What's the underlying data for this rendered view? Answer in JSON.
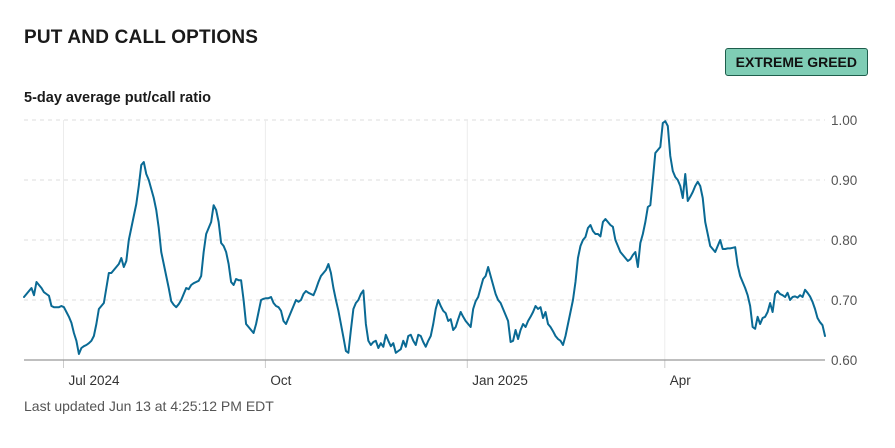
{
  "header": {
    "title": "PUT AND CALL OPTIONS",
    "badge": "EXTREME GREED",
    "subtitle": "5-day average put/call ratio",
    "updated": "Last updated Jun 13 at 4:25:12 PM EDT"
  },
  "colors": {
    "line": "#0a6a94",
    "badge_bg": "#7fcdb5",
    "badge_border": "#1e5e4c",
    "grid": "#dddddd",
    "axis": "#999999"
  },
  "chart_data": {
    "type": "line",
    "title": "5-day average put/call ratio",
    "xlabel": "",
    "ylabel": "",
    "x_start": "2024-06-13",
    "x_end": "2025-06-13",
    "x_ticks": [
      {
        "label": "Jul 2024",
        "date": "2024-07-01"
      },
      {
        "label": "Oct",
        "date": "2024-10-01"
      },
      {
        "label": "Jan 2025",
        "date": "2025-01-01"
      },
      {
        "label": "Apr",
        "date": "2025-04-01"
      }
    ],
    "y_ticks": [
      "1.00",
      "0.90",
      "0.80",
      "0.70",
      "0.60"
    ],
    "ylim": [
      0.6,
      1.0
    ],
    "grid": true,
    "y_axis_position": "right",
    "series": [
      {
        "values": [
          0.705,
          0.71,
          0.715,
          0.72,
          0.708,
          0.73,
          0.725,
          0.72,
          0.713,
          0.71,
          0.707,
          0.69,
          0.688,
          0.688,
          0.688,
          0.69,
          0.688,
          0.68,
          0.672,
          0.662,
          0.645,
          0.632,
          0.61,
          0.62,
          0.623,
          0.625,
          0.628,
          0.632,
          0.64,
          0.66,
          0.685,
          0.69,
          0.695,
          0.72,
          0.745,
          0.745,
          0.75,
          0.755,
          0.76,
          0.77,
          0.755,
          0.765,
          0.8,
          0.82,
          0.84,
          0.86,
          0.89,
          0.925,
          0.93,
          0.91,
          0.9,
          0.885,
          0.87,
          0.85,
          0.82,
          0.78,
          0.76,
          0.74,
          0.72,
          0.698,
          0.692,
          0.688,
          0.693,
          0.7,
          0.71,
          0.72,
          0.718,
          0.725,
          0.728,
          0.73,
          0.732,
          0.74,
          0.78,
          0.81,
          0.82,
          0.83,
          0.858,
          0.85,
          0.83,
          0.795,
          0.79,
          0.78,
          0.76,
          0.73,
          0.725,
          0.735,
          0.733,
          0.733,
          0.7,
          0.66,
          0.655,
          0.65,
          0.645,
          0.66,
          0.68,
          0.7,
          0.702,
          0.703,
          0.703,
          0.705,
          0.695,
          0.69,
          0.688,
          0.682,
          0.665,
          0.66,
          0.67,
          0.68,
          0.69,
          0.7,
          0.697,
          0.7,
          0.71,
          0.715,
          0.712,
          0.71,
          0.708,
          0.718,
          0.73,
          0.74,
          0.745,
          0.75,
          0.76,
          0.745,
          0.72,
          0.7,
          0.682,
          0.66,
          0.638,
          0.615,
          0.612,
          0.65,
          0.685,
          0.695,
          0.7,
          0.71,
          0.716,
          0.66,
          0.632,
          0.625,
          0.63,
          0.632,
          0.62,
          0.628,
          0.622,
          0.642,
          0.632,
          0.623,
          0.628,
          0.612,
          0.615,
          0.618,
          0.632,
          0.622,
          0.64,
          0.642,
          0.632,
          0.625,
          0.642,
          0.64,
          0.63,
          0.622,
          0.632,
          0.64,
          0.66,
          0.685,
          0.7,
          0.69,
          0.682,
          0.678,
          0.665,
          0.668,
          0.65,
          0.655,
          0.668,
          0.68,
          0.672,
          0.665,
          0.66,
          0.655,
          0.685,
          0.698,
          0.705,
          0.72,
          0.735,
          0.74,
          0.755,
          0.74,
          0.725,
          0.71,
          0.7,
          0.695,
          0.685,
          0.675,
          0.665,
          0.63,
          0.632,
          0.65,
          0.635,
          0.65,
          0.66,
          0.655,
          0.665,
          0.672,
          0.68,
          0.69,
          0.685,
          0.688,
          0.67,
          0.68,
          0.66,
          0.655,
          0.648,
          0.64,
          0.635,
          0.632,
          0.625,
          0.64,
          0.66,
          0.68,
          0.7,
          0.73,
          0.77,
          0.79,
          0.8,
          0.805,
          0.82,
          0.825,
          0.815,
          0.81,
          0.81,
          0.806,
          0.83,
          0.835,
          0.83,
          0.825,
          0.822,
          0.8,
          0.79,
          0.78,
          0.775,
          0.77,
          0.765,
          0.768,
          0.775,
          0.78,
          0.755,
          0.795,
          0.81,
          0.83,
          0.855,
          0.858,
          0.9,
          0.945,
          0.95,
          0.955,
          0.995,
          0.998,
          0.99,
          0.94,
          0.915,
          0.905,
          0.9,
          0.89,
          0.87,
          0.91,
          0.865,
          0.872,
          0.88,
          0.89,
          0.897,
          0.89,
          0.87,
          0.83,
          0.81,
          0.79,
          0.785,
          0.78,
          0.79,
          0.8,
          0.785,
          0.785,
          0.786,
          0.786,
          0.787,
          0.788,
          0.758,
          0.74,
          0.73,
          0.72,
          0.708,
          0.69,
          0.655,
          0.652,
          0.672,
          0.66,
          0.67,
          0.672,
          0.68,
          0.695,
          0.68,
          0.71,
          0.715,
          0.71,
          0.708,
          0.705,
          0.712,
          0.7,
          0.705,
          0.706,
          0.704,
          0.708,
          0.705,
          0.717,
          0.712,
          0.706,
          0.697,
          0.685,
          0.67,
          0.663,
          0.658,
          0.64
        ]
      }
    ]
  }
}
